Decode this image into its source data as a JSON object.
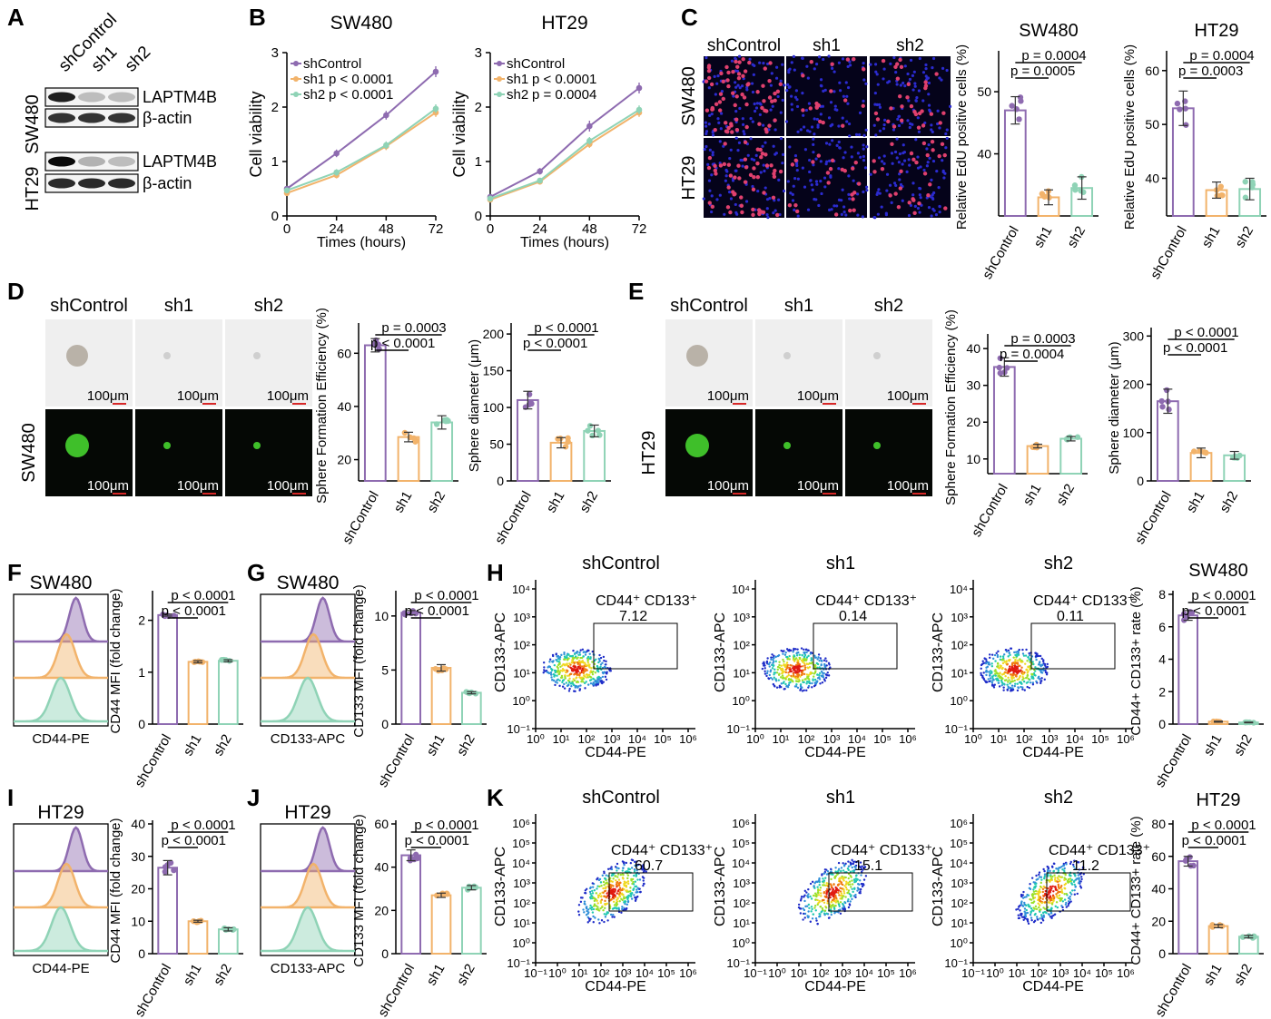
{
  "colors": {
    "shControl": "#8e6bb0",
    "sh1": "#f2b36b",
    "sh2": "#8fd3b6",
    "axis": "#000000",
    "scale_bar": "#d62828",
    "fluor_green": "#3fbf2a",
    "edu_red": "#e0406e",
    "edu_blue": "#2b2bd0"
  },
  "groups": [
    "shControl",
    "sh1",
    "sh2"
  ],
  "panel_letters": [
    "A",
    "B",
    "C",
    "D",
    "E",
    "F",
    "G",
    "H",
    "I",
    "J",
    "K"
  ],
  "blot": {
    "col_labels": [
      "shControl",
      "sh1",
      "sh2"
    ],
    "rows": [
      {
        "cell": "SW480",
        "bands": [
          {
            "label": "LAPTM4B",
            "intensity": [
              0.9,
              0.15,
              0.15
            ]
          },
          {
            "label": "β-actin",
            "intensity": [
              0.8,
              0.8,
              0.8
            ]
          }
        ]
      },
      {
        "cell": "HT29",
        "bands": [
          {
            "label": "LAPTM4B",
            "intensity": [
              1.0,
              0.2,
              0.15
            ]
          },
          {
            "label": "β-actin",
            "intensity": [
              0.85,
              0.85,
              0.85
            ]
          }
        ]
      }
    ]
  },
  "viability": [
    {
      "title": "SW480",
      "xlabel": "Times (hours)",
      "ylabel": "Cell viability",
      "x": [
        0,
        24,
        48,
        72
      ],
      "yticks": [
        0,
        1,
        2,
        3
      ],
      "series": [
        {
          "name": "shControl",
          "values": [
            0.5,
            1.15,
            1.85,
            2.65
          ],
          "err": [
            0.05,
            0.07,
            0.08,
            0.1
          ]
        },
        {
          "name": "sh1",
          "values": [
            0.42,
            0.75,
            1.28,
            1.9
          ],
          "err": [
            0.05,
            0.06,
            0.07,
            0.08
          ]
        },
        {
          "name": "sh2",
          "values": [
            0.47,
            0.8,
            1.3,
            1.97
          ],
          "err": [
            0.05,
            0.06,
            0.07,
            0.08
          ]
        }
      ],
      "legend": [
        {
          "label": "shControl",
          "p": ""
        },
        {
          "label": "sh1",
          "p": "p < 0.0001"
        },
        {
          "label": "sh2",
          "p": "p < 0.0001"
        }
      ]
    },
    {
      "title": "HT29",
      "xlabel": "Times (hours)",
      "ylabel": "Cell viability",
      "x": [
        0,
        24,
        48,
        72
      ],
      "yticks": [
        0,
        1,
        2,
        3
      ],
      "series": [
        {
          "name": "shControl",
          "values": [
            0.35,
            0.82,
            1.65,
            2.35
          ],
          "err": [
            0.05,
            0.06,
            0.1,
            0.1
          ]
        },
        {
          "name": "sh1",
          "values": [
            0.3,
            0.63,
            1.32,
            1.9
          ],
          "err": [
            0.04,
            0.05,
            0.07,
            0.08
          ]
        },
        {
          "name": "sh2",
          "values": [
            0.32,
            0.65,
            1.38,
            1.95
          ],
          "err": [
            0.04,
            0.05,
            0.07,
            0.08
          ]
        }
      ],
      "legend": [
        {
          "label": "shControl",
          "p": ""
        },
        {
          "label": "sh1",
          "p": "p < 0.0001"
        },
        {
          "label": "sh2",
          "p": "p = 0.0004"
        }
      ]
    }
  ],
  "edu_images": {
    "cols": [
      "shControl",
      "sh1",
      "sh2"
    ],
    "rows": [
      "SW480",
      "HT29"
    ]
  },
  "sphere_images": [
    {
      "cell": "SW480",
      "cols": [
        "shControl",
        "sh1",
        "sh2"
      ],
      "scale": "100μm"
    },
    {
      "cell": "HT29",
      "cols": [
        "shControl",
        "sh1",
        "sh2"
      ],
      "scale": "100μm"
    }
  ],
  "bar_panels": [
    {
      "id": "C1",
      "title": "SW480",
      "ylabel": "Relative EdU positive cells (%)",
      "yticks": [
        40,
        50
      ],
      "ymin": 30,
      "ymax": 56,
      "values": [
        47,
        33,
        34.5
      ],
      "err": [
        2.2,
        1.2,
        1.8
      ],
      "p": [
        "p = 0.0004",
        "p = 0.0005"
      ]
    },
    {
      "id": "C2",
      "title": "HT29",
      "ylabel": "Relative EdU positive cells (%)",
      "yticks": [
        40,
        50,
        60
      ],
      "ymin": 33,
      "ymax": 63,
      "values": [
        53,
        37.8,
        38
      ],
      "err": [
        3.2,
        1.5,
        2
      ],
      "p": [
        "p = 0.0004",
        "p = 0.0003"
      ]
    },
    {
      "id": "D1",
      "title": "",
      "ylabel": "Sphere Formation Efficiency (%)",
      "yticks": [
        20,
        40,
        60
      ],
      "ymin": 12,
      "ymax": 70,
      "values": [
        63,
        28.5,
        34
      ],
      "err": [
        2.5,
        1.8,
        2.5
      ],
      "p": [
        "p = 0.0003",
        "p < 0.0001"
      ]
    },
    {
      "id": "D2",
      "title": "",
      "ylabel": "Sphere diameter (μm)",
      "yticks": [
        0,
        50,
        100,
        150,
        200
      ],
      "ymin": 0,
      "ymax": 210,
      "values": [
        110,
        52,
        68
      ],
      "err": [
        12,
        7,
        8
      ],
      "p": [
        "p < 0.0001",
        "p < 0.0001"
      ]
    },
    {
      "id": "E1",
      "title": "",
      "ylabel": "Sphere Formation Efficiency (%)",
      "yticks": [
        10,
        20,
        30,
        40
      ],
      "ymin": 6,
      "ymax": 43,
      "values": [
        35,
        13.5,
        15.5
      ],
      "err": [
        2.5,
        0.5,
        0.6
      ],
      "p": [
        "p = 0.0003",
        "p = 0.0004"
      ]
    },
    {
      "id": "E2",
      "title": "",
      "ylabel": "Sphere diameter (μm)",
      "yticks": [
        0,
        100,
        200,
        300
      ],
      "ymin": 0,
      "ymax": 310,
      "values": [
        165,
        58,
        53
      ],
      "err": [
        25,
        10,
        8
      ],
      "p": [
        "p < 0.0001",
        "p < 0.0001"
      ]
    },
    {
      "id": "F",
      "title": "",
      "ylabel": "CD44 MFI (fold change)",
      "yticks": [
        0,
        1,
        2
      ],
      "ymin": 0,
      "ymax": 2.5,
      "values": [
        2.1,
        1.2,
        1.22
      ],
      "err": [
        0.02,
        0.02,
        0.02
      ],
      "p": [
        "p < 0.0001",
        "p < 0.0001"
      ]
    },
    {
      "id": "G",
      "title": "",
      "ylabel": "CD133 MFI (fold change)",
      "yticks": [
        0,
        5,
        10
      ],
      "ymin": 0,
      "ymax": 12,
      "values": [
        10.3,
        5.2,
        2.9
      ],
      "err": [
        0.2,
        0.3,
        0.1
      ],
      "p": [
        "p < 0.0001",
        "p < 0.0001"
      ]
    },
    {
      "id": "H",
      "title": "",
      "ylabel": "CD44 MFI (fold change)",
      "yticks": [
        0,
        10,
        20,
        30,
        40
      ],
      "ymin": 0,
      "ymax": 40,
      "values": [
        26.5,
        10,
        7.5
      ],
      "err": [
        2.2,
        0.3,
        0.5
      ],
      "p": [
        "p < 0.0001",
        "p < 0.0001"
      ]
    },
    {
      "id": "I",
      "title": "",
      "ylabel": "CD133 MFI (fold change)",
      "yticks": [
        0,
        20,
        40,
        60
      ],
      "ymin": 0,
      "ymax": 60,
      "values": [
        45.5,
        27,
        30.5
      ],
      "err": [
        2.5,
        1,
        1
      ],
      "p": [
        "p < 0.0001",
        "p < 0.0001"
      ]
    },
    {
      "id": "J",
      "title": "SW480",
      "ylabel": "CD44+ CD133+ rate (%)",
      "yticks": [
        0,
        2,
        4,
        6,
        8
      ],
      "ymin": 0,
      "ymax": 8,
      "values": [
        6.7,
        0.15,
        0.1
      ],
      "err": [
        0.3,
        0.03,
        0.02
      ],
      "p": [
        "p < 0.0001",
        "p < 0.0001"
      ]
    },
    {
      "id": "K",
      "title": "HT29",
      "ylabel": "CD44+ CD133+ rate (%)",
      "yticks": [
        0,
        20,
        40,
        60,
        80
      ],
      "ymin": 0,
      "ymax": 80,
      "values": [
        57,
        17,
        10.5
      ],
      "err": [
        3,
        1,
        0.8
      ],
      "p": [
        "p < 0.0001",
        "p < 0.0001"
      ]
    }
  ],
  "histograms": [
    {
      "id": "F",
      "cell": "SW480",
      "xlabel": "CD44-PE"
    },
    {
      "id": "G",
      "cell": "SW480",
      "xlabel": "CD133-APC"
    },
    {
      "id": "H",
      "cell": "HT29",
      "xlabel": "CD44-PE"
    },
    {
      "id": "I",
      "cell": "HT29",
      "xlabel": "CD133-APC"
    }
  ],
  "flow": [
    {
      "row": "J",
      "xlabel": "CD44-PE",
      "ylabel": "CD133-APC",
      "xticks": [
        "10⁰",
        "10¹",
        "10²",
        "10³",
        "10⁴",
        "10⁵",
        "10⁶"
      ],
      "yticks": [
        "10⁻¹",
        "10⁰",
        "10¹",
        "10²",
        "10³",
        "10⁴"
      ],
      "plots": [
        {
          "title": "shControl",
          "gate": "CD44⁺ CD133⁺",
          "value": "7.12"
        },
        {
          "title": "sh1",
          "gate": "CD44⁺ CD133⁺",
          "value": "0.14"
        },
        {
          "title": "sh2",
          "gate": "CD44⁺ CD133⁺",
          "value": "0.11"
        }
      ]
    },
    {
      "row": "K",
      "xlabel": "CD44-PE",
      "ylabel": "CD133-APC",
      "xticks": [
        "10⁻¹",
        "10⁰",
        "10¹",
        "10²",
        "10³",
        "10⁴",
        "10⁵",
        "10⁶"
      ],
      "yticks": [
        "10⁻¹",
        "10⁰",
        "10¹",
        "10²",
        "10³",
        "10⁴",
        "10⁵",
        "10⁶"
      ],
      "plots": [
        {
          "title": "shControl",
          "gate": "CD44⁺ CD133⁺",
          "value": "60.7"
        },
        {
          "title": "sh1",
          "gate": "CD44⁺ CD133⁺",
          "value": "15.1"
        },
        {
          "title": "sh2",
          "gate": "CD44⁺ CD133⁺",
          "value": "11.2"
        }
      ]
    }
  ],
  "chart_data": [
    {
      "type": "line",
      "title": "SW480",
      "xlabel": "Times (hours)",
      "ylabel": "Cell viability",
      "x": [
        0,
        24,
        48,
        72
      ],
      "ylim": [
        0,
        3
      ],
      "series": [
        {
          "name": "shControl",
          "values": [
            0.5,
            1.15,
            1.85,
            2.65
          ]
        },
        {
          "name": "sh1",
          "values": [
            0.42,
            0.75,
            1.28,
            1.9
          ]
        },
        {
          "name": "sh2",
          "values": [
            0.47,
            0.8,
            1.3,
            1.97
          ]
        }
      ]
    },
    {
      "type": "line",
      "title": "HT29",
      "xlabel": "Times (hours)",
      "ylabel": "Cell viability",
      "x": [
        0,
        24,
        48,
        72
      ],
      "ylim": [
        0,
        3
      ],
      "series": [
        {
          "name": "shControl",
          "values": [
            0.35,
            0.82,
            1.65,
            2.35
          ]
        },
        {
          "name": "sh1",
          "values": [
            0.3,
            0.63,
            1.32,
            1.9
          ]
        },
        {
          "name": "sh2",
          "values": [
            0.32,
            0.65,
            1.38,
            1.95
          ]
        }
      ]
    },
    {
      "type": "bar",
      "title": "SW480",
      "ylabel": "Relative EdU positive cells (%)",
      "categories": [
        "shControl",
        "sh1",
        "sh2"
      ],
      "values": [
        47,
        33,
        34.5
      ]
    },
    {
      "type": "bar",
      "title": "HT29",
      "ylabel": "Relative EdU positive cells (%)",
      "categories": [
        "shControl",
        "sh1",
        "sh2"
      ],
      "values": [
        53,
        37.8,
        38
      ]
    },
    {
      "type": "bar",
      "ylabel": "Sphere Formation Efficiency (%)",
      "categories": [
        "shControl",
        "sh1",
        "sh2"
      ],
      "values": [
        63,
        28.5,
        34
      ]
    },
    {
      "type": "bar",
      "ylabel": "Sphere diameter (μm)",
      "categories": [
        "shControl",
        "sh1",
        "sh2"
      ],
      "values": [
        110,
        52,
        68
      ]
    },
    {
      "type": "bar",
      "ylabel": "Sphere Formation Efficiency (%)",
      "categories": [
        "shControl",
        "sh1",
        "sh2"
      ],
      "values": [
        35,
        13.5,
        15.5
      ]
    },
    {
      "type": "bar",
      "ylabel": "Sphere diameter (μm)",
      "categories": [
        "shControl",
        "sh1",
        "sh2"
      ],
      "values": [
        165,
        58,
        53
      ]
    },
    {
      "type": "bar",
      "ylabel": "CD44 MFI (fold change)",
      "categories": [
        "shControl",
        "sh1",
        "sh2"
      ],
      "values": [
        2.1,
        1.2,
        1.22
      ]
    },
    {
      "type": "bar",
      "ylabel": "CD133 MFI (fold change)",
      "categories": [
        "shControl",
        "sh1",
        "sh2"
      ],
      "values": [
        10.3,
        5.2,
        2.9
      ]
    },
    {
      "type": "bar",
      "ylabel": "CD44 MFI (fold change)",
      "categories": [
        "shControl",
        "sh1",
        "sh2"
      ],
      "values": [
        26.5,
        10,
        7.5
      ]
    },
    {
      "type": "bar",
      "ylabel": "CD133 MFI (fold change)",
      "categories": [
        "shControl",
        "sh1",
        "sh2"
      ],
      "values": [
        45.5,
        27,
        30.5
      ]
    },
    {
      "type": "bar",
      "title": "SW480",
      "ylabel": "CD44+ CD133+ rate (%)",
      "categories": [
        "shControl",
        "sh1",
        "sh2"
      ],
      "values": [
        6.7,
        0.15,
        0.1
      ]
    },
    {
      "type": "bar",
      "title": "HT29",
      "ylabel": "CD44+ CD133+ rate (%)",
      "categories": [
        "shControl",
        "sh1",
        "sh2"
      ],
      "values": [
        57,
        17,
        10.5
      ]
    }
  ]
}
